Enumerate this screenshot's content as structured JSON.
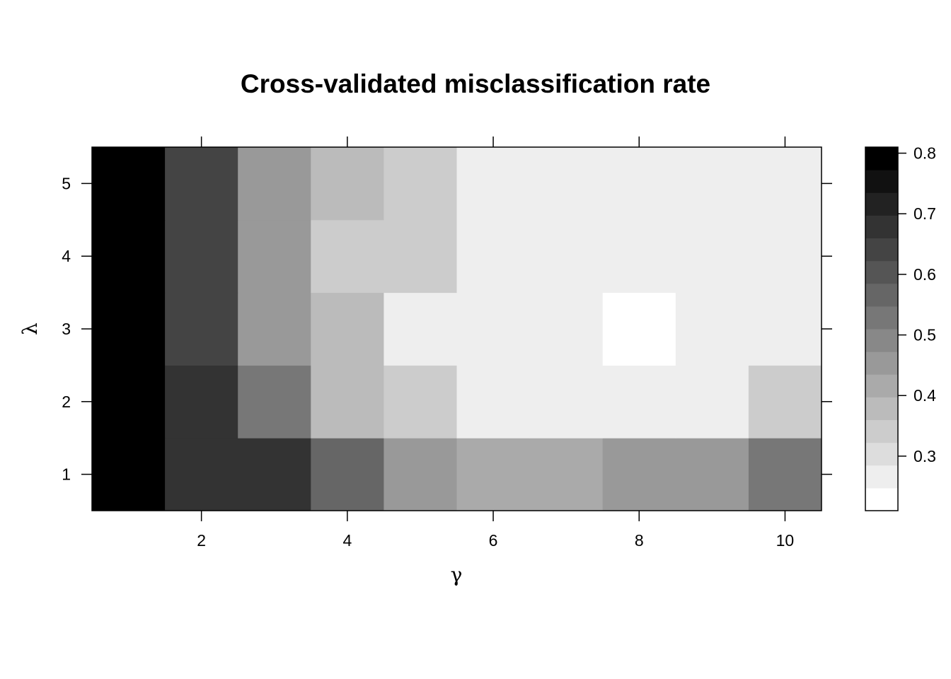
{
  "chart_data": {
    "type": "heatmap",
    "title": "Cross-validated misclassification rate",
    "xlabel": "γ",
    "ylabel": "λ",
    "x": [
      1,
      2,
      3,
      4,
      5,
      6,
      7,
      8,
      9,
      10
    ],
    "y": [
      1,
      2,
      3,
      4,
      5
    ],
    "xlim": [
      0.5,
      10.5
    ],
    "ylim": [
      0.5,
      5.5
    ],
    "x_ticks": [
      2,
      4,
      6,
      8,
      10
    ],
    "y_ticks": [
      1,
      2,
      3,
      4,
      5
    ],
    "values": [
      [
        0.8,
        0.68,
        0.66,
        0.56,
        0.46,
        0.43,
        0.43,
        0.46,
        0.46,
        0.51
      ],
      [
        0.8,
        0.68,
        0.54,
        0.38,
        0.34,
        0.28,
        0.28,
        0.26,
        0.28,
        0.34
      ],
      [
        0.8,
        0.63,
        0.46,
        0.38,
        0.28,
        0.28,
        0.26,
        0.22,
        0.26,
        0.28
      ],
      [
        0.8,
        0.63,
        0.46,
        0.34,
        0.34,
        0.28,
        0.26,
        0.26,
        0.28,
        0.28
      ],
      [
        0.8,
        0.63,
        0.46,
        0.38,
        0.34,
        0.28,
        0.26,
        0.26,
        0.28,
        0.28
      ]
    ],
    "colorbar": {
      "range": [
        0.21,
        0.81
      ],
      "ticks": [
        0.3,
        0.4,
        0.5,
        0.6,
        0.7,
        0.8
      ],
      "tick_labels": [
        "0.3",
        "0.4",
        "0.5",
        "0.6",
        "0.7",
        "0.8"
      ],
      "low_color": "#ffffff",
      "high_color": "#000000"
    },
    "grid": false,
    "legend": "right"
  }
}
